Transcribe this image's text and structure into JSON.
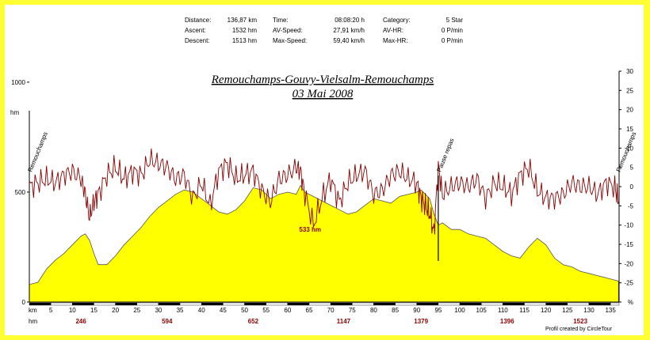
{
  "stats": {
    "distance_label": "Distance:",
    "distance_value": "136,87 km",
    "ascent_label": "Ascent:",
    "ascent_value": "1532 hm",
    "descent_label": "Descent:",
    "descent_value": "1513 hm",
    "time_label": "Time:",
    "time_value": "08:08:20 h",
    "avspeed_label": "AV-Speed:",
    "avspeed_value": "27,91 km/h",
    "maxspeed_label": "Max-Speed:",
    "maxspeed_value": "59,40 km/h",
    "category_label": "Category:",
    "category_value": "5 Star",
    "avhr_label": "AV-HR:",
    "avhr_value": "0 P/min",
    "maxhr_label": "Max-HR:",
    "maxhr_value": "0 P/min"
  },
  "credit": "Profil created by CircleTour",
  "colors": {
    "border": "#ffff33",
    "profile_fill": "#ffff00",
    "gradient_line": "#8b0000",
    "hm_label": "#8b0000"
  },
  "chart_data": {
    "type": "area",
    "title": "Remouchamps-Gouvy-Vielsalm-Remouchamps",
    "subtitle": "03 Mai 2008",
    "ylabel": "hm",
    "xlabel": "km",
    "ylim": [
      0,
      1000
    ],
    "yticks": [
      "0",
      "500",
      "1000"
    ],
    "y2lim": [
      -30,
      30
    ],
    "y2ticks": [
      "30",
      "25",
      "20",
      "15",
      "10",
      "5",
      "0",
      "-5",
      "-10",
      "-15",
      "-20",
      "-25",
      "%"
    ],
    "xlim": [
      0,
      137
    ],
    "xticks": [
      "5",
      "10",
      "15",
      "20",
      "25",
      "30",
      "35",
      "40",
      "45",
      "50",
      "55",
      "60",
      "65",
      "70",
      "75",
      "80",
      "85",
      "90",
      "95",
      "100",
      "105",
      "110",
      "115",
      "120",
      "125",
      "130",
      "135"
    ],
    "km_label": "km",
    "hm_row_label": "hm",
    "hm_markers": [
      {
        "km": 12,
        "label": "246"
      },
      {
        "km": 32,
        "label": "594"
      },
      {
        "km": 52,
        "label": "652"
      },
      {
        "km": 73,
        "label": "1147"
      },
      {
        "km": 91,
        "label": "1379"
      },
      {
        "km": 111,
        "label": "1396"
      },
      {
        "km": 128,
        "label": "1523"
      }
    ],
    "annotations": [
      {
        "km": 0,
        "label": "Remouchamps"
      },
      {
        "km": 95,
        "label": "Pause repas"
      },
      {
        "km": 136.87,
        "label": "Remouchamps"
      }
    ],
    "max_label": {
      "km": 66,
      "text": "533 hm"
    },
    "series": [
      {
        "values_key": "elevation",
        "x": [
          0,
          2,
          4,
          6,
          8,
          10,
          12,
          13,
          14,
          15,
          16,
          18,
          20,
          22,
          24,
          26,
          28,
          30,
          32,
          34,
          36,
          38,
          40,
          42,
          44,
          46,
          48,
          50,
          52,
          54,
          56,
          58,
          60,
          62,
          63,
          64,
          66,
          68,
          70,
          72,
          74,
          76,
          78,
          80,
          82,
          84,
          86,
          88,
          90,
          91,
          92,
          93,
          94,
          95,
          96,
          98,
          100,
          102,
          104,
          106,
          108,
          110,
          112,
          114,
          116,
          118,
          120,
          122,
          124,
          126,
          128,
          130,
          132,
          134,
          136,
          136.87
        ],
        "y": [
          80,
          90,
          150,
          190,
          220,
          260,
          300,
          310,
          280,
          220,
          170,
          170,
          210,
          260,
          300,
          340,
          390,
          430,
          460,
          490,
          510,
          500,
          470,
          440,
          410,
          400,
          420,
          460,
          520,
          510,
          470,
          490,
          500,
          490,
          530,
          500,
          480,
          460,
          440,
          420,
          400,
          410,
          440,
          470,
          460,
          450,
          480,
          490,
          500,
          510,
          490,
          470,
          400,
          350,
          360,
          330,
          330,
          310,
          300,
          290,
          260,
          230,
          210,
          200,
          250,
          290,
          260,
          200,
          170,
          160,
          140,
          130,
          120,
          110,
          100,
          95
        ]
      },
      {
        "values_key": "gradient_percent",
        "x": [
          0,
          2,
          4,
          6,
          8,
          10,
          12,
          13,
          14,
          15,
          16,
          18,
          20,
          22,
          24,
          26,
          28,
          30,
          32,
          34,
          36,
          38,
          40,
          42,
          44,
          46,
          48,
          50,
          52,
          54,
          56,
          58,
          60,
          62,
          63,
          64,
          66,
          68,
          70,
          72,
          74,
          76,
          78,
          80,
          82,
          84,
          86,
          88,
          90,
          91,
          92,
          93,
          94,
          95,
          96,
          98,
          100,
          102,
          104,
          106,
          108,
          110,
          112,
          114,
          116,
          118,
          120,
          122,
          124,
          126,
          128,
          130,
          132,
          134,
          136,
          136.87
        ],
        "y": [
          0,
          1,
          2,
          1,
          3,
          4,
          2,
          -2,
          -8,
          -4,
          -2,
          3,
          5,
          2,
          4,
          3,
          7,
          6,
          5,
          2,
          3,
          -3,
          1,
          -5,
          4,
          6,
          2,
          3,
          4,
          -1,
          -4,
          2,
          3,
          5,
          4,
          -2,
          -10,
          -3,
          2,
          -4,
          1,
          3,
          4,
          -2,
          -1,
          3,
          4,
          2,
          1,
          -3,
          -5,
          -7,
          -12,
          5,
          -2,
          0,
          1,
          0,
          2,
          -3,
          1,
          0,
          -2,
          3,
          5,
          -1,
          -3,
          -3,
          -2,
          1,
          0,
          0,
          -2,
          1,
          0,
          -4
        ]
      }
    ]
  }
}
